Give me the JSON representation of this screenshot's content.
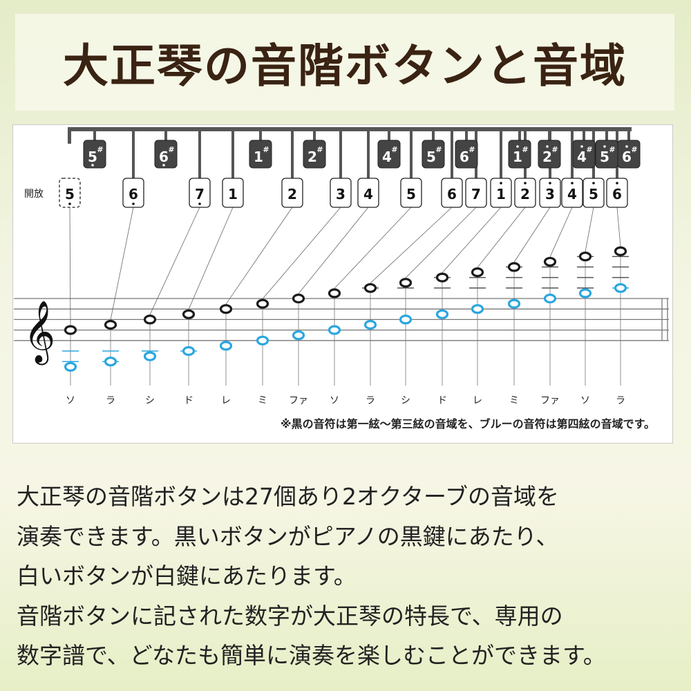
{
  "title": "大正琴の音階ボタンと音域",
  "diagram": {
    "open_label": "開放",
    "white_buttons": [
      {
        "num": "5",
        "dot": "below",
        "open": true
      },
      {
        "num": "6",
        "dot": "below"
      },
      {
        "num": "7",
        "dot": "below"
      },
      {
        "num": "1",
        "dot": ""
      },
      {
        "num": "2",
        "dot": ""
      },
      {
        "num": "3",
        "dot": ""
      },
      {
        "num": "4",
        "dot": ""
      },
      {
        "num": "5",
        "dot": ""
      },
      {
        "num": "6",
        "dot": ""
      },
      {
        "num": "7",
        "dot": ""
      },
      {
        "num": "1",
        "dot": "above"
      },
      {
        "num": "2",
        "dot": "above"
      },
      {
        "num": "3",
        "dot": "above"
      },
      {
        "num": "4",
        "dot": "above"
      },
      {
        "num": "5",
        "dot": "above"
      },
      {
        "num": "6",
        "dot": "above"
      }
    ],
    "black_buttons": [
      {
        "num": "5",
        "sharp": "#",
        "dot": "below"
      },
      {
        "num": "6",
        "sharp": "#",
        "dot": "below"
      },
      {
        "num": "1",
        "sharp": "#",
        "dot": ""
      },
      {
        "num": "2",
        "sharp": "#",
        "dot": ""
      },
      {
        "num": "4",
        "sharp": "#",
        "dot": ""
      },
      {
        "num": "5",
        "sharp": "#",
        "dot": ""
      },
      {
        "num": "6",
        "sharp": "#",
        "dot": ""
      },
      {
        "num": "1",
        "sharp": "#",
        "dot": "above"
      },
      {
        "num": "2",
        "sharp": "#",
        "dot": "above"
      },
      {
        "num": "4",
        "sharp": "#",
        "dot": "above"
      },
      {
        "num": "5",
        "sharp": "#",
        "dot": "above"
      },
      {
        "num": "6",
        "sharp": "#",
        "dot": "above"
      }
    ],
    "black_notes": [
      "G4",
      "A4",
      "B4",
      "C5",
      "D5",
      "E5",
      "F5",
      "G5",
      "A5",
      "B5",
      "C6",
      "D6",
      "E6",
      "F6",
      "G6",
      "A6"
    ],
    "blue_notes": [
      "G3",
      "A3",
      "B3",
      "C4",
      "D4",
      "E4",
      "F4",
      "G4",
      "A4",
      "B4",
      "C5",
      "D5",
      "E5",
      "F5",
      "G5",
      "A5"
    ],
    "solfege": [
      "ソ",
      "ラ",
      "シ",
      "ド",
      "レ",
      "ミ",
      "ファ",
      "ソ",
      "ラ",
      "シ",
      "ド",
      "レ",
      "ミ",
      "ファ",
      "ソ",
      "ラ"
    ],
    "note": "※黒の音符は第一絃～第三絃の音域を、ブルーの音符は第四絃の音域です。",
    "colors": {
      "black_note": "#1a1a1a",
      "blue_note": "#2aa6e0",
      "black_button": "#444444",
      "stem": "#555555"
    }
  },
  "body": [
    "大正琴の音階ボタンは27個あり2オクターブの音域を",
    "演奏できます。黒いボタンがピアノの黒鍵にあたり、",
    "白いボタンが白鍵にあたります。",
    "音階ボタンに記された数字が大正琴の特長で、専用の",
    "数字譜で、どなたも簡単に演奏を楽しむことができます。"
  ]
}
